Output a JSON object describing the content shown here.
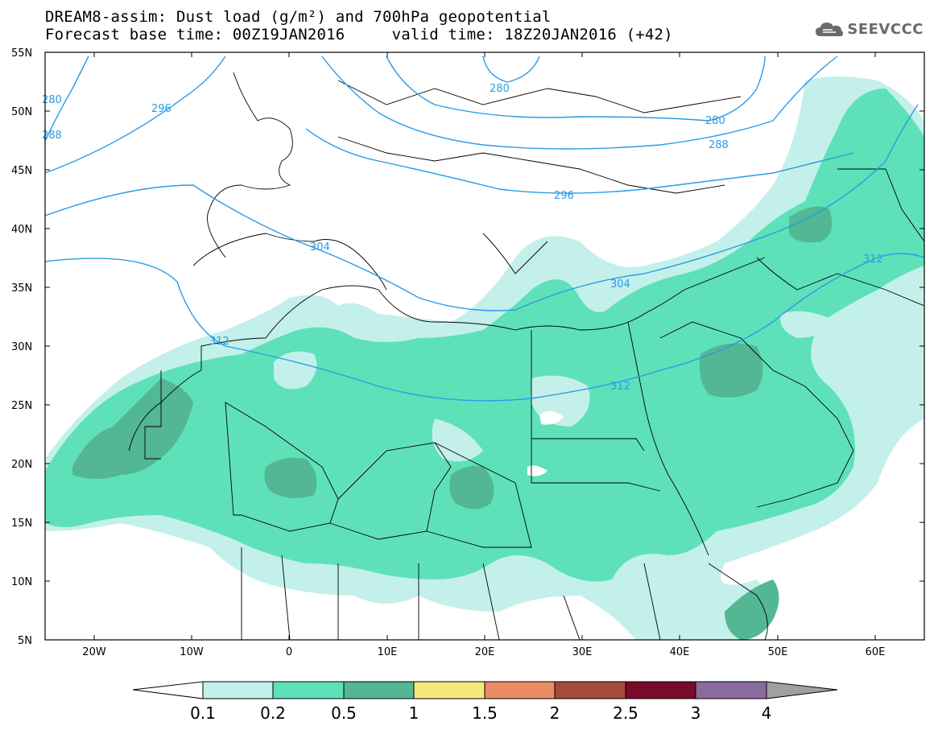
{
  "header": {
    "line1": "DREAM8-assim: Dust load (g/m²) and 700hPa geopotential",
    "line2": "Forecast base time: 00Z19JAN2016     valid time: 18Z20JAN2016 (+42)"
  },
  "logo": {
    "text": "SEEVCCC",
    "icon": "cloud-icon"
  },
  "map": {
    "lat_labels": [
      "55N",
      "50N",
      "45N",
      "40N",
      "35N",
      "30N",
      "25N",
      "20N",
      "15N",
      "10N",
      "5N"
    ],
    "lon_labels": [
      "20W",
      "10W",
      "0",
      "10E",
      "20E",
      "30E",
      "40E",
      "50E",
      "60E"
    ],
    "contour_labels": [
      "280",
      "288",
      "296",
      "280",
      "280",
      "288",
      "296",
      "304",
      "304",
      "312",
      "312",
      "312"
    ],
    "colors": {
      "contour": "#2b9be6",
      "dust_01": "#c3f0ea",
      "dust_02": "#5ee1b9",
      "dust_05": "#52b792"
    }
  },
  "colorbar": {
    "labels": [
      "0.1",
      "0.2",
      "0.5",
      "1",
      "1.5",
      "2",
      "2.5",
      "3",
      "4"
    ],
    "colors": [
      "#ffffff",
      "#c3f0ea",
      "#5ee1b9",
      "#52b792",
      "#f6e97c",
      "#ea8d65",
      "#a54a3c",
      "#7a0a2a",
      "#8a6b9e",
      "#a0a0a0"
    ]
  }
}
